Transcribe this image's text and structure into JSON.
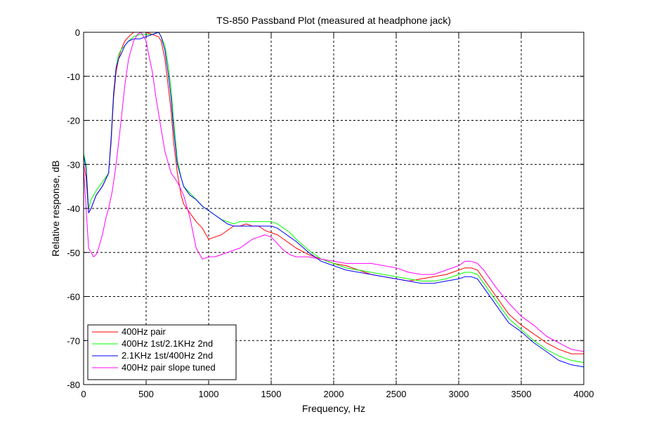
{
  "chart_data": {
    "type": "line",
    "title": "TS-850 Passband Plot (measured at headphone jack)",
    "xlabel": "Frequency, Hz",
    "ylabel": "Relative response, dB",
    "xlim": [
      0,
      4000
    ],
    "ylim": [
      -80,
      0
    ],
    "xticks": [
      0,
      500,
      1000,
      1500,
      2000,
      2500,
      3000,
      3500,
      4000
    ],
    "yticks": [
      0,
      -10,
      -20,
      -30,
      -40,
      -50,
      -60,
      -70,
      -80
    ],
    "grid": true,
    "legend_position": "bottom-left",
    "series": [
      {
        "name": "400Hz pair",
        "color": "#ff0000",
        "x": [
          0,
          20,
          40,
          60,
          100,
          150,
          200,
          220,
          240,
          260,
          280,
          300,
          330,
          360,
          400,
          450,
          500,
          550,
          600,
          620,
          650,
          680,
          700,
          720,
          750,
          780,
          800,
          850,
          900,
          950,
          1000,
          1050,
          1100,
          1150,
          1200,
          1250,
          1300,
          1350,
          1400,
          1450,
          1500,
          1550,
          1600,
          1650,
          1700,
          1800,
          1900,
          2000,
          2100,
          2200,
          2300,
          2400,
          2500,
          2600,
          2700,
          2800,
          2900,
          3000,
          3050,
          3100,
          3150,
          3200,
          3300,
          3400,
          3500,
          3600,
          3700,
          3800,
          3900,
          4000
        ],
        "values": [
          -30,
          -33,
          -41,
          -40,
          -37,
          -35,
          -32,
          -25,
          -15,
          -9,
          -6,
          -4,
          -2,
          -1,
          0,
          0,
          0,
          -0.5,
          -1,
          -2,
          -6,
          -13,
          -18,
          -25,
          -32,
          -37,
          -39,
          -41,
          -43,
          -44.5,
          -47,
          -46.5,
          -46,
          -45,
          -44,
          -44,
          -43.5,
          -44,
          -44,
          -45,
          -45.5,
          -46,
          -47,
          -48,
          -49,
          -50.5,
          -51.5,
          -52.5,
          -53,
          -54,
          -55,
          -55.5,
          -56,
          -56.5,
          -56,
          -55.5,
          -55,
          -54,
          -53.5,
          -53.5,
          -54,
          -56,
          -60,
          -64,
          -66.5,
          -68.5,
          -70.5,
          -72,
          -73,
          -73
        ]
      },
      {
        "name": "400Hz 1st/2.1KHz 2nd",
        "color": "#00ff00",
        "x": [
          0,
          20,
          40,
          60,
          100,
          150,
          200,
          220,
          240,
          260,
          280,
          300,
          330,
          360,
          400,
          450,
          500,
          550,
          600,
          620,
          650,
          680,
          700,
          720,
          750,
          780,
          800,
          850,
          900,
          950,
          1000,
          1050,
          1100,
          1150,
          1200,
          1250,
          1300,
          1350,
          1400,
          1450,
          1500,
          1550,
          1600,
          1650,
          1700,
          1800,
          1900,
          2000,
          2100,
          2200,
          2300,
          2400,
          2500,
          2600,
          2700,
          2800,
          2900,
          3000,
          3050,
          3100,
          3150,
          3200,
          3300,
          3400,
          3500,
          3600,
          3700,
          3800,
          3900,
          4000
        ],
        "values": [
          -27.5,
          -30,
          -40,
          -38,
          -36,
          -34,
          -32,
          -24,
          -14,
          -8,
          -5,
          -4,
          -3,
          -2,
          -1,
          -0.5,
          -0.5,
          -0.5,
          0,
          -1,
          -3,
          -8,
          -13,
          -20,
          -29,
          -33,
          -35,
          -36.5,
          -38,
          -39.5,
          -40.5,
          -41.5,
          -42.5,
          -43,
          -43.5,
          -43,
          -43,
          -43,
          -43,
          -43,
          -43,
          -43.5,
          -44.5,
          -45.5,
          -47,
          -49.5,
          -51.5,
          -52.5,
          -53.5,
          -54,
          -54.5,
          -55,
          -55.5,
          -56,
          -56.5,
          -56.5,
          -56,
          -55,
          -54.5,
          -54.5,
          -55,
          -57,
          -61,
          -65,
          -67.5,
          -70,
          -72,
          -73.5,
          -74.5,
          -75
        ]
      },
      {
        "name": "2.1KHz 1st/400Hz 2nd",
        "color": "#0000ff",
        "x": [
          0,
          20,
          40,
          60,
          100,
          150,
          200,
          220,
          240,
          260,
          280,
          300,
          330,
          360,
          400,
          450,
          500,
          550,
          600,
          620,
          650,
          680,
          700,
          720,
          750,
          780,
          800,
          850,
          900,
          950,
          1000,
          1050,
          1100,
          1150,
          1200,
          1250,
          1300,
          1350,
          1400,
          1450,
          1500,
          1550,
          1600,
          1650,
          1700,
          1800,
          1900,
          2000,
          2100,
          2200,
          2300,
          2400,
          2500,
          2600,
          2700,
          2800,
          2900,
          3000,
          3050,
          3100,
          3150,
          3200,
          3300,
          3400,
          3500,
          3600,
          3700,
          3800,
          3900,
          4000
        ],
        "values": [
          -28,
          -31,
          -41,
          -40,
          -37,
          -35,
          -32,
          -24,
          -14,
          -8,
          -6,
          -5,
          -3,
          -2,
          -1.5,
          -1.5,
          -1,
          -0.5,
          0,
          -1,
          -4,
          -10,
          -15,
          -22,
          -30,
          -33,
          -35,
          -37,
          -38,
          -39.5,
          -40.5,
          -41.5,
          -42.5,
          -43.5,
          -44,
          -44,
          -44,
          -44,
          -44,
          -44,
          -44,
          -44.5,
          -45.5,
          -46.5,
          -47.5,
          -50,
          -52,
          -53,
          -54,
          -54.5,
          -55,
          -55.5,
          -56,
          -56.5,
          -57,
          -57,
          -56.5,
          -56,
          -55.5,
          -55.5,
          -56,
          -58,
          -62,
          -66,
          -68,
          -70.5,
          -72.5,
          -74.5,
          -75.5,
          -76
        ]
      },
      {
        "name": "400Hz pair slope tuned",
        "color": "#ff00ff",
        "x": [
          0,
          20,
          40,
          60,
          80,
          100,
          120,
          150,
          180,
          200,
          230,
          260,
          300,
          330,
          360,
          400,
          430,
          460,
          480,
          500,
          520,
          550,
          580,
          620,
          650,
          700,
          750,
          800,
          850,
          900,
          950,
          1000,
          1050,
          1100,
          1150,
          1200,
          1250,
          1300,
          1350,
          1400,
          1450,
          1500,
          1550,
          1600,
          1650,
          1700,
          1800,
          1900,
          2000,
          2100,
          2200,
          2300,
          2400,
          2500,
          2600,
          2700,
          2800,
          2900,
          3000,
          3050,
          3100,
          3150,
          3200,
          3300,
          3400,
          3500,
          3600,
          3700,
          3800,
          3900,
          4000
        ],
        "values": [
          -31,
          -40,
          -49,
          -50,
          -51,
          -50.5,
          -49,
          -46,
          -42,
          -40,
          -36,
          -30,
          -20,
          -12,
          -6,
          -2,
          -0.5,
          0,
          -1,
          -2,
          -5,
          -9,
          -15,
          -22,
          -27,
          -32,
          -34,
          -37,
          -42,
          -49,
          -51.5,
          -51,
          -51,
          -50.5,
          -50,
          -49.5,
          -49,
          -48,
          -47,
          -46.5,
          -46,
          -46.5,
          -48,
          -49.5,
          -50.5,
          -51,
          -51,
          -51.5,
          -52,
          -52.5,
          -52.5,
          -52.5,
          -53,
          -53.5,
          -54.5,
          -55,
          -55,
          -54,
          -53,
          -52,
          -52,
          -52.5,
          -54,
          -58,
          -61.5,
          -64.5,
          -66.5,
          -69,
          -70.5,
          -72,
          -72.5
        ]
      }
    ]
  }
}
